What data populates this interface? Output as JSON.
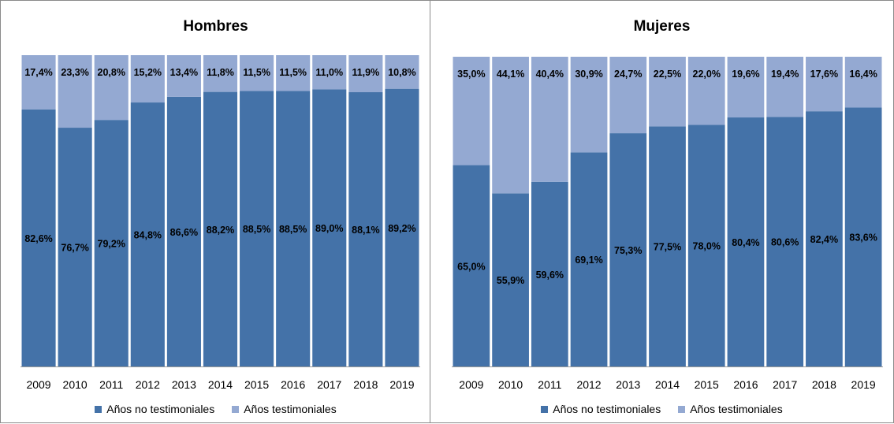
{
  "chart_data": [
    {
      "type": "bar",
      "stacked": true,
      "percent": true,
      "title": "Hombres",
      "categories": [
        "2009",
        "2010",
        "2011",
        "2012",
        "2013",
        "2014",
        "2015",
        "2016",
        "2017",
        "2018",
        "2019"
      ],
      "series": [
        {
          "name": "Años no testimoniales",
          "color": "#4472a8",
          "values": [
            82.6,
            76.7,
            79.2,
            84.8,
            86.6,
            88.2,
            88.5,
            88.5,
            89.0,
            88.1,
            89.2
          ],
          "labels": [
            "82,6%",
            "76,7%",
            "79,2%",
            "84,8%",
            "86,6%",
            "88,2%",
            "88,5%",
            "88,5%",
            "89,0%",
            "88,1%",
            "89,2%"
          ]
        },
        {
          "name": "Años testimoniales",
          "color": "#94a9d2",
          "values": [
            17.4,
            23.3,
            20.8,
            15.2,
            13.4,
            11.8,
            11.5,
            11.5,
            11.0,
            11.9,
            10.8
          ],
          "labels": [
            "17,4%",
            "23,3%",
            "20,8%",
            "15,2%",
            "13,4%",
            "11,8%",
            "11,5%",
            "11,5%",
            "11,0%",
            "11,9%",
            "10,8%"
          ]
        }
      ],
      "ylim": [
        0,
        100
      ],
      "legend_position": "bottom"
    },
    {
      "type": "bar",
      "stacked": true,
      "percent": true,
      "title": "Mujeres",
      "categories": [
        "2009",
        "2010",
        "2011",
        "2012",
        "2013",
        "2014",
        "2015",
        "2016",
        "2017",
        "2018",
        "2019"
      ],
      "series": [
        {
          "name": "Años no testimoniales",
          "color": "#4472a8",
          "values": [
            65.0,
            55.9,
            59.6,
            69.1,
            75.3,
            77.5,
            78.0,
            80.4,
            80.6,
            82.4,
            83.6
          ],
          "labels": [
            "65,0%",
            "55,9%",
            "59,6%",
            "69,1%",
            "75,3%",
            "77,5%",
            "78,0%",
            "80,4%",
            "80,6%",
            "82,4%",
            "83,6%"
          ]
        },
        {
          "name": "Años testimoniales",
          "color": "#94a9d2",
          "values": [
            35.0,
            44.1,
            40.4,
            30.9,
            24.7,
            22.5,
            22.0,
            19.6,
            19.4,
            17.6,
            16.4
          ],
          "labels": [
            "35,0%",
            "44,1%",
            "40,4%",
            "30,9%",
            "24,7%",
            "22,5%",
            "22,0%",
            "19,6%",
            "19,4%",
            "17,6%",
            "16,4%"
          ]
        }
      ],
      "ylim": [
        0,
        100
      ],
      "legend_position": "bottom"
    }
  ]
}
